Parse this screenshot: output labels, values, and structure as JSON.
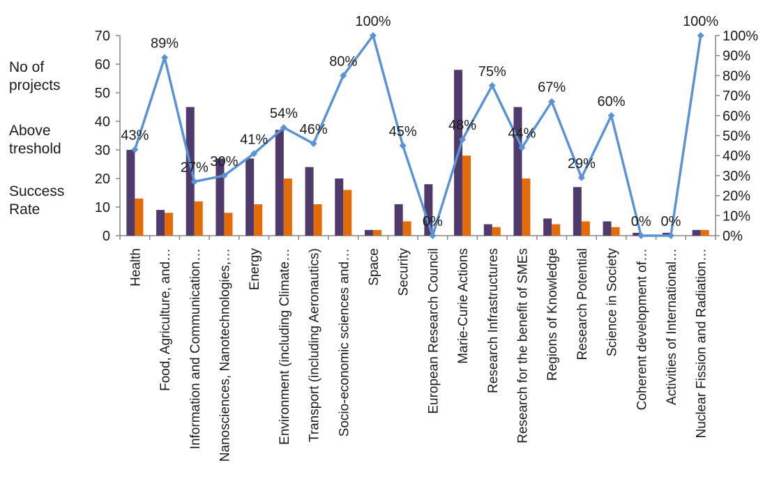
{
  "legend": {
    "projects": "No of\nprojects",
    "above": "Above\ntreshold",
    "success": "Success\nRate"
  },
  "colors": {
    "projects": "#4f3b6b",
    "above": "#e36c09",
    "success": "#5b93d2",
    "marker": "#5b93d2"
  },
  "chart_data": {
    "type": "bar",
    "categories": [
      "Health",
      "Food, Agriculture, and…",
      "Information and Communication…",
      "Nanosciences, Nanotechnologies,…",
      "Energy",
      "Environment (including Climate…",
      "Transport (including Aeronautics)",
      "Socio-economic sciences and…",
      "Space",
      "Security",
      "European Research Council",
      "Marie-Curie Actions",
      "Research Infrastructures",
      "Research for the benefit of SMEs",
      "Regions of Knowledge",
      "Research Potential",
      "Science in Society",
      "Coherent development of…",
      "Activities of International…",
      "Nuclear Fission and Radiation…"
    ],
    "series": [
      {
        "name": "No of projects",
        "axis": "left",
        "values": [
          30,
          9,
          45,
          27,
          27,
          37,
          24,
          20,
          2,
          11,
          18,
          58,
          4,
          45,
          6,
          17,
          5,
          1,
          1,
          2
        ]
      },
      {
        "name": "Above treshold",
        "axis": "left",
        "values": [
          13,
          8,
          12,
          8,
          11,
          20,
          11,
          16,
          2,
          5,
          0,
          28,
          3,
          20,
          4,
          5,
          3,
          0,
          0,
          2
        ]
      },
      {
        "name": "Success Rate",
        "axis": "right",
        "type": "line",
        "values": [
          43,
          89,
          27,
          30,
          41,
          54,
          46,
          80,
          100,
          45,
          0,
          48,
          75,
          44,
          67,
          29,
          60,
          0,
          0,
          100
        ],
        "data_labels": [
          "43%",
          "89%",
          "27%",
          "30%",
          "41%",
          "54%",
          "46%",
          "80%",
          "100%",
          "45%",
          "0%",
          "48%",
          "75%",
          "44%",
          "67%",
          "29%",
          "60%",
          "0%",
          "0%",
          "100%"
        ]
      }
    ],
    "y_left": {
      "lim": [
        0,
        70
      ],
      "ticks": [
        "0",
        "10",
        "20",
        "30",
        "40",
        "50",
        "60",
        "70"
      ]
    },
    "y_right": {
      "lim": [
        0,
        100
      ],
      "ticks": [
        "0%",
        "10%",
        "20%",
        "30%",
        "40%",
        "50%",
        "60%",
        "70%",
        "80%",
        "90%",
        "100%"
      ]
    },
    "grid": false,
    "legend_placement": "left"
  }
}
